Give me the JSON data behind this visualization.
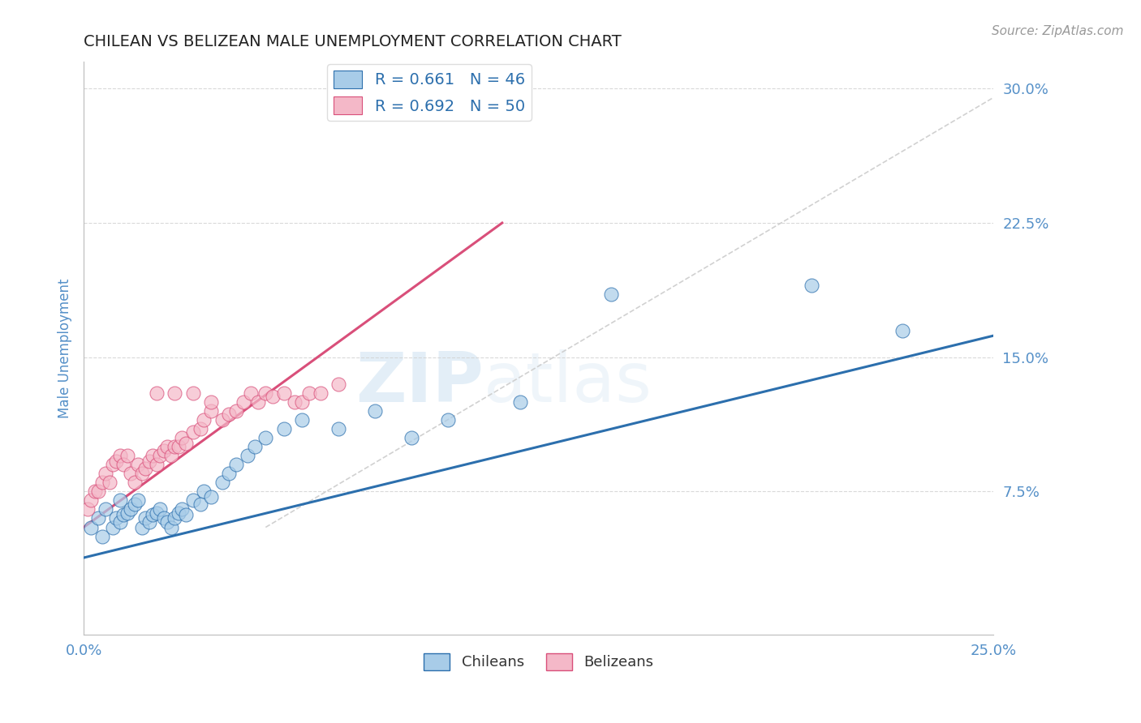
{
  "title": "CHILEAN VS BELIZEAN MALE UNEMPLOYMENT CORRELATION CHART",
  "source_text": "Source: ZipAtlas.com",
  "ylabel": "Male Unemployment",
  "xmin": 0.0,
  "xmax": 0.25,
  "ymin": -0.005,
  "ymax": 0.315,
  "yticks": [
    0.075,
    0.15,
    0.225,
    0.3
  ],
  "ytick_labels": [
    "7.5%",
    "15.0%",
    "22.5%",
    "30.0%"
  ],
  "xtick_labels": [
    "0.0%",
    "25.0%"
  ],
  "xticks": [
    0.0,
    0.25
  ],
  "blue_color": "#a8cce8",
  "pink_color": "#f4b8c8",
  "trend_blue": "#2c6fad",
  "trend_pink": "#d94f7a",
  "legend_R_blue": "R = 0.661",
  "legend_N_blue": "N = 46",
  "legend_R_pink": "R = 0.692",
  "legend_N_pink": "N = 50",
  "blue_scatter_x": [
    0.002,
    0.004,
    0.005,
    0.006,
    0.008,
    0.009,
    0.01,
    0.01,
    0.011,
    0.012,
    0.013,
    0.014,
    0.015,
    0.016,
    0.017,
    0.018,
    0.019,
    0.02,
    0.021,
    0.022,
    0.023,
    0.024,
    0.025,
    0.026,
    0.027,
    0.028,
    0.03,
    0.032,
    0.033,
    0.035,
    0.038,
    0.04,
    0.042,
    0.045,
    0.047,
    0.05,
    0.055,
    0.06,
    0.07,
    0.08,
    0.09,
    0.1,
    0.12,
    0.145,
    0.2,
    0.225
  ],
  "blue_scatter_y": [
    0.055,
    0.06,
    0.05,
    0.065,
    0.055,
    0.06,
    0.07,
    0.058,
    0.062,
    0.063,
    0.065,
    0.068,
    0.07,
    0.055,
    0.06,
    0.058,
    0.062,
    0.063,
    0.065,
    0.06,
    0.058,
    0.055,
    0.06,
    0.063,
    0.065,
    0.062,
    0.07,
    0.068,
    0.075,
    0.072,
    0.08,
    0.085,
    0.09,
    0.095,
    0.1,
    0.105,
    0.11,
    0.115,
    0.11,
    0.12,
    0.105,
    0.115,
    0.125,
    0.185,
    0.19,
    0.165
  ],
  "pink_scatter_x": [
    0.001,
    0.002,
    0.003,
    0.004,
    0.005,
    0.006,
    0.007,
    0.008,
    0.009,
    0.01,
    0.011,
    0.012,
    0.013,
    0.014,
    0.015,
    0.016,
    0.017,
    0.018,
    0.019,
    0.02,
    0.021,
    0.022,
    0.023,
    0.024,
    0.025,
    0.026,
    0.027,
    0.028,
    0.03,
    0.032,
    0.033,
    0.035,
    0.038,
    0.04,
    0.042,
    0.044,
    0.046,
    0.048,
    0.05,
    0.052,
    0.055,
    0.058,
    0.06,
    0.062,
    0.065,
    0.07,
    0.02,
    0.025,
    0.03,
    0.035
  ],
  "pink_scatter_y": [
    0.065,
    0.07,
    0.075,
    0.075,
    0.08,
    0.085,
    0.08,
    0.09,
    0.092,
    0.095,
    0.09,
    0.095,
    0.085,
    0.08,
    0.09,
    0.085,
    0.088,
    0.092,
    0.095,
    0.09,
    0.095,
    0.098,
    0.1,
    0.095,
    0.1,
    0.1,
    0.105,
    0.102,
    0.108,
    0.11,
    0.115,
    0.12,
    0.115,
    0.118,
    0.12,
    0.125,
    0.13,
    0.125,
    0.13,
    0.128,
    0.13,
    0.125,
    0.125,
    0.13,
    0.13,
    0.135,
    0.13,
    0.13,
    0.13,
    0.125
  ],
  "blue_trend_x": [
    0.0,
    0.25
  ],
  "blue_trend_y": [
    0.038,
    0.162
  ],
  "pink_trend_x": [
    0.0,
    0.115
  ],
  "pink_trend_y": [
    0.055,
    0.225
  ],
  "diag_line_x": [
    0.05,
    0.25
  ],
  "diag_line_y": [
    0.055,
    0.295
  ],
  "background_color": "#ffffff",
  "grid_color": "#d0d0d0",
  "title_color": "#222222",
  "axis_label_color": "#5590c8",
  "tick_color": "#5590c8"
}
